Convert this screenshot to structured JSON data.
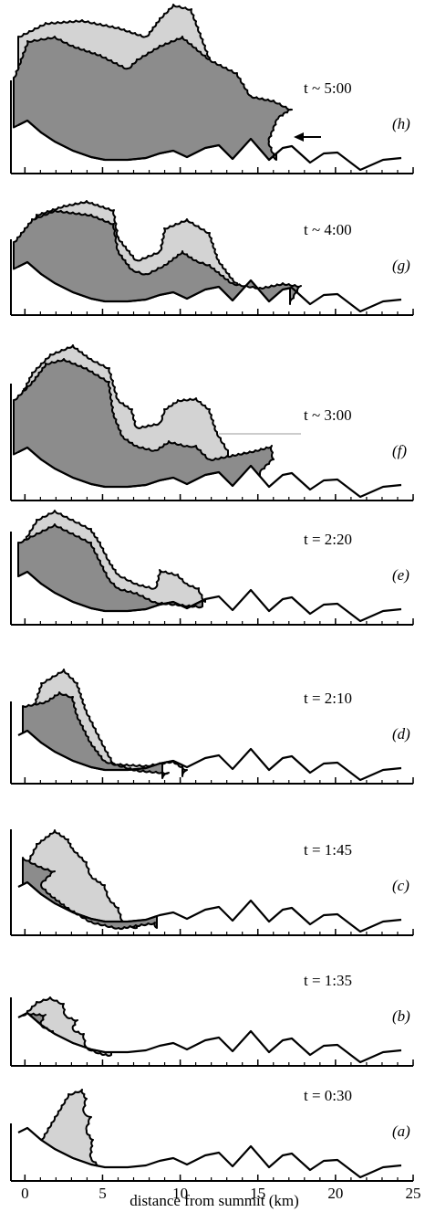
{
  "chart_data": {
    "type": "profile",
    "x_label": "distance from summit (km)",
    "xlim": [
      -0.9,
      25
    ],
    "xticks": [
      0,
      5,
      10,
      15,
      20,
      25
    ],
    "panels": [
      {
        "time": "t ~ 5:00",
        "label": "(h)"
      },
      {
        "time": "t ~ 4:00",
        "label": "(g)"
      },
      {
        "time": "t ~ 3:00",
        "label": "(f)"
      },
      {
        "time": "t = 2:20",
        "label": "(e)"
      },
      {
        "time": "t = 2:10",
        "label": "(d)"
      },
      {
        "time": "t = 1:45",
        "label": "(c)"
      },
      {
        "time": "t = 1:35",
        "label": "(b)"
      },
      {
        "time": "t = 0:30",
        "label": "(a)"
      }
    ]
  }
}
